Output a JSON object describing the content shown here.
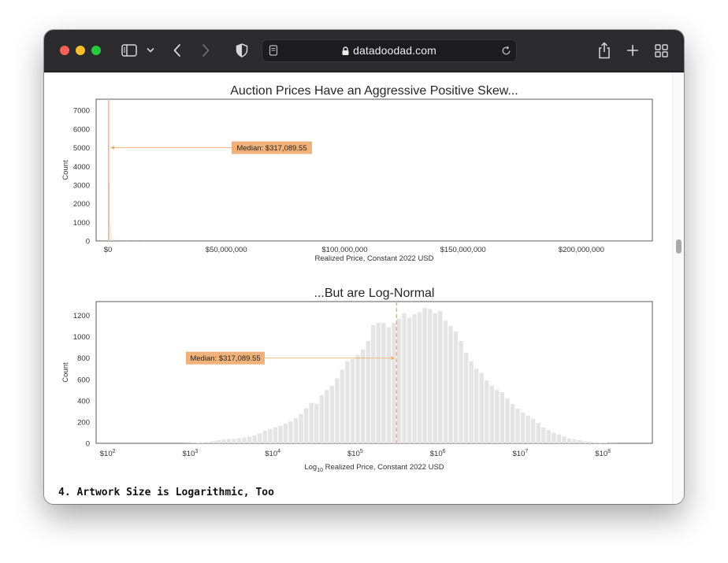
{
  "browser": {
    "url": "datadoodad.com",
    "icons": {
      "sidebar": "sidebar-icon",
      "chevron": "chevron-down-icon",
      "back": "back-arrow-icon",
      "forward": "forward-arrow-icon",
      "shield": "privacy-shield-icon",
      "reader": "reader-icon",
      "lock": "lock-icon",
      "reload": "reload-icon",
      "share": "share-icon",
      "newtab": "plus-icon",
      "tabs": "tab-overview-icon"
    }
  },
  "chart_data": [
    {
      "type": "histogram",
      "title": "Auction Prices Have an Aggressive Positive Skew...",
      "xlabel": "Realized Price, Constant 2022 USD",
      "ylabel": "Count",
      "xlim": [
        -5000000,
        230000000
      ],
      "ylim": [
        0,
        7600
      ],
      "yticks": [
        0,
        1000,
        2000,
        3000,
        4000,
        5000,
        6000,
        7000
      ],
      "xticks": [
        0,
        50000000,
        100000000,
        150000000,
        200000000
      ],
      "xtick_labels": [
        "$0",
        "$50,000,000",
        "$100,000,000",
        "$150,000,000",
        "$200,000,000"
      ],
      "bins": [
        {
          "x": 0,
          "count": 7600
        },
        {
          "x": 500000,
          "count": 3100
        },
        {
          "x": 1000000,
          "count": 900
        },
        {
          "x": 1500000,
          "count": 400
        },
        {
          "x": 2000000,
          "count": 200
        },
        {
          "x": 3000000,
          "count": 120
        },
        {
          "x": 4000000,
          "count": 80
        },
        {
          "x": 6000000,
          "count": 50
        },
        {
          "x": 8000000,
          "count": 30
        },
        {
          "x": 11000000,
          "count": 18
        },
        {
          "x": 15000000,
          "count": 10
        },
        {
          "x": 20000000,
          "count": 5
        }
      ],
      "median_value": 317089.55,
      "annotation": "Median: $317,089.55",
      "annotation_y": 5000,
      "median_color": "#f0b27a",
      "bar_color": "#d9d9d9"
    },
    {
      "type": "histogram",
      "title": "...But are Log-Normal",
      "xlabel_prefix": "Log",
      "xlabel_sub": "10",
      "xlabel_suffix": " Realized Price, Constant 2022 USD",
      "ylabel": "Count",
      "xlim": [
        1.86,
        8.6
      ],
      "ylim": [
        0,
        1330
      ],
      "yticks": [
        0,
        200,
        400,
        600,
        800,
        1000,
        1200
      ],
      "xticks": [
        2,
        3,
        4,
        5,
        6,
        7,
        8
      ],
      "xtick_base": "$10",
      "xtick_exps": [
        "2",
        "3",
        "4",
        "5",
        "6",
        "7",
        "8"
      ],
      "bin_start": 2.0,
      "bin_width": 0.0625,
      "counts": [
        0,
        0,
        0,
        0,
        0,
        0,
        0,
        0,
        0,
        0,
        0,
        0,
        0,
        0,
        0,
        1,
        2,
        5,
        8,
        13,
        20,
        30,
        36,
        40,
        42,
        48,
        55,
        62,
        75,
        95,
        118,
        135,
        150,
        165,
        185,
        205,
        235,
        275,
        330,
        380,
        370,
        450,
        500,
        540,
        610,
        690,
        770,
        790,
        830,
        880,
        960,
        1110,
        1130,
        1130,
        1090,
        1130,
        1170,
        1220,
        1180,
        1210,
        1230,
        1270,
        1260,
        1220,
        1240,
        1150,
        1100,
        1050,
        960,
        850,
        770,
        700,
        660,
        590,
        540,
        500,
        480,
        420,
        370,
        325,
        290,
        260,
        230,
        190,
        150,
        125,
        100,
        85,
        65,
        45,
        38,
        30,
        20,
        14,
        9,
        5,
        3,
        1,
        1,
        0,
        0,
        0,
        0,
        0,
        0,
        0,
        0,
        0
      ],
      "median_log": 5.501,
      "annotation": "Median: $317,089.55",
      "annotation_y": 800,
      "median_color": "#f0b27a",
      "bar_color": "#e4e4e4"
    }
  ],
  "article": {
    "section_heading": "4. Artwork Size is Logarithmic, Too"
  }
}
